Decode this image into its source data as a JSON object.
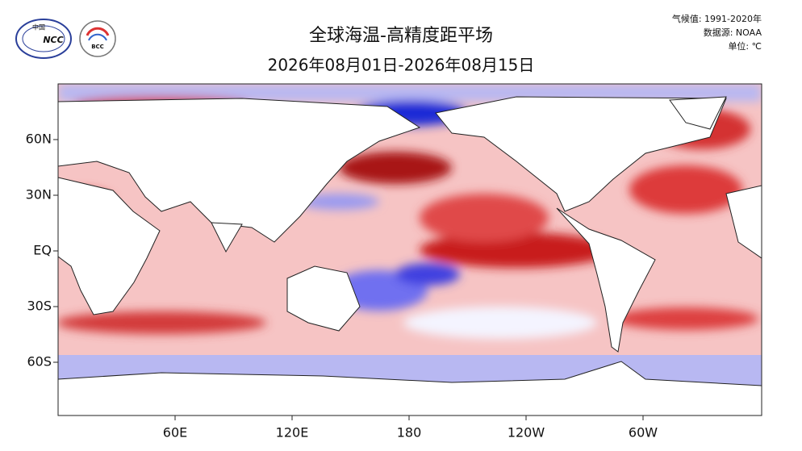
{
  "header": {
    "title": "全球海温-高精度距平场",
    "subtitle": "2026年08月01日-2026年08月15日",
    "notes": [
      "气候值: 1991-2020年",
      "数据源: NOAA",
      "单位: ℃"
    ]
  },
  "logos": [
    {
      "label": "中国",
      "text": "NCC"
    },
    {
      "text": "BCC"
    }
  ],
  "map": {
    "lat_labels": [
      "60N",
      "30N",
      "EQ",
      "30S",
      "60S"
    ],
    "lon_labels": [
      "60E",
      "120E",
      "180",
      "120W",
      "60W"
    ]
  }
}
